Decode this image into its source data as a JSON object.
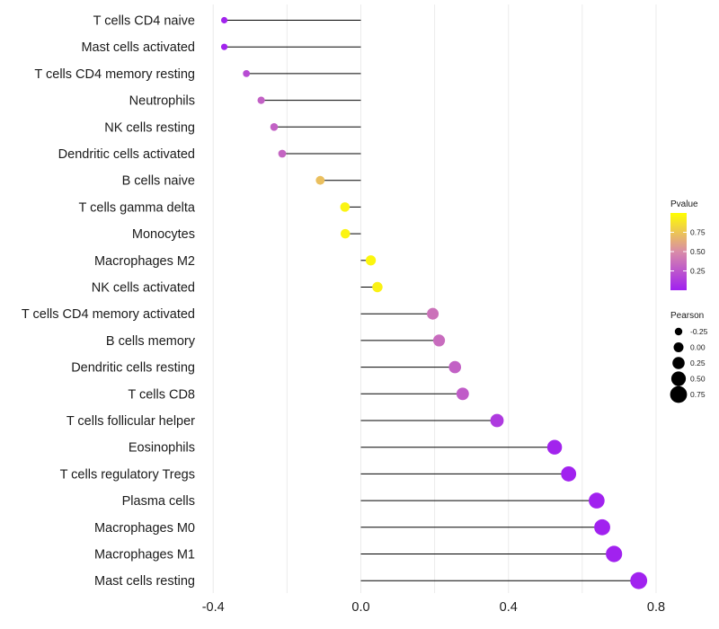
{
  "chart_data": {
    "type": "lollipop",
    "orientation": "horizontal",
    "categories": [
      "T cells CD4 naive",
      "Mast cells activated",
      "T cells CD4 memory resting",
      "Neutrophils",
      "NK cells resting",
      "Dendritic cells activated",
      "B cells naive",
      "T cells gamma delta",
      "Monocytes",
      "Macrophages M2",
      "NK cells activated",
      "T cells CD4 memory activated",
      "B cells memory",
      "Dendritic cells resting",
      "T cells CD8",
      "T cells follicular helper",
      "Eosinophils",
      "T cells regulatory  Tregs",
      "Plasma cells",
      "Macrophages M0",
      "Macrophages M1",
      "Mast cells resting"
    ],
    "pearson": [
      -0.37,
      -0.37,
      -0.31,
      -0.27,
      -0.235,
      -0.213,
      -0.11,
      -0.043,
      -0.042,
      0.027,
      0.045,
      0.195,
      0.212,
      0.255,
      0.276,
      0.369,
      0.525,
      0.563,
      0.639,
      0.654,
      0.686,
      0.753
    ],
    "pvalue": [
      0.02,
      0.02,
      0.2,
      0.3,
      0.3,
      0.32,
      0.72,
      0.95,
      0.95,
      0.96,
      0.94,
      0.38,
      0.35,
      0.3,
      0.28,
      0.12,
      0.02,
      0.01,
      0.01,
      0.01,
      0.01,
      0.01
    ],
    "xlim": [
      -0.42,
      0.8
    ],
    "x_ticks": [
      -0.4,
      0.0,
      0.4,
      0.8
    ],
    "x_tick_labels": [
      "-0.4",
      "0.0",
      "0.4",
      "0.8"
    ],
    "xlabel": "",
    "ylabel": "",
    "grid": true,
    "color_scale": {
      "title": "Pvalue",
      "low_color": "#a020f0",
      "mid_color": "#d98ca8",
      "high_color": "#ffff00",
      "range": [
        0,
        1
      ],
      "ticks": [
        0.25,
        0.5,
        0.75
      ],
      "tick_labels": [
        "0.25",
        "0.50",
        "0.75"
      ]
    },
    "size_legend": {
      "title": "Pearson",
      "values": [
        -0.25,
        0.0,
        0.25,
        0.5,
        0.75
      ],
      "labels": [
        "-0.25",
        "0.00",
        "0.25",
        "0.50",
        "0.75"
      ]
    },
    "legend_position": "right"
  }
}
